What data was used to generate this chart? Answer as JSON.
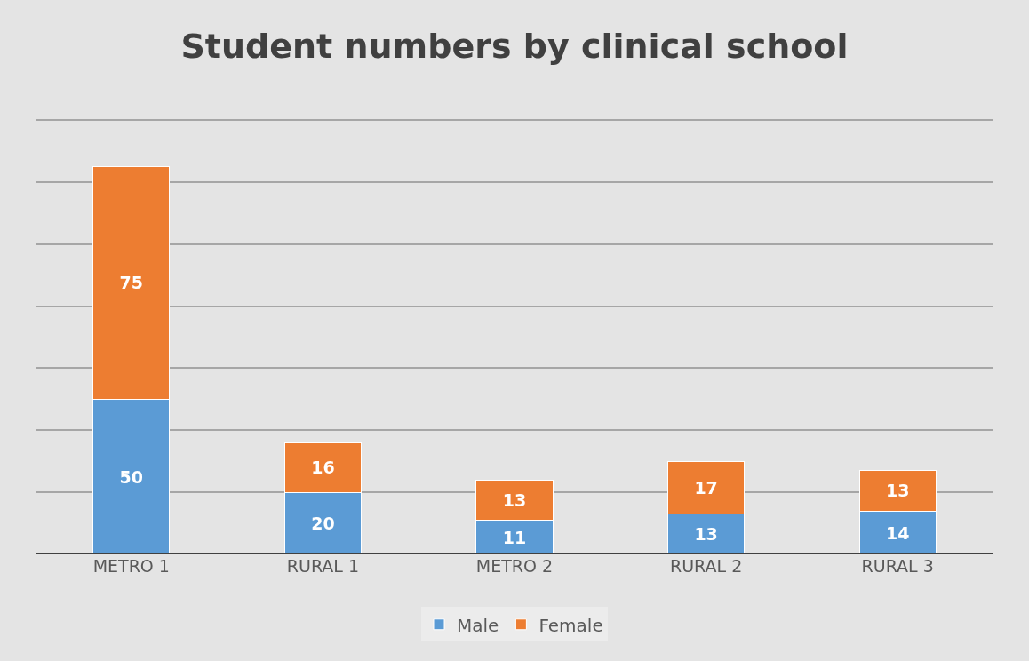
{
  "chart_data": {
    "type": "bar",
    "title": "Student numbers by clinical school",
    "stacked": true,
    "categories": [
      "METRO 1",
      "RURAL 1",
      "METRO 2",
      "RURAL 2",
      "RURAL 3"
    ],
    "series": [
      {
        "name": "Male",
        "color": "#5b9bd5",
        "values": [
          50,
          20,
          11,
          13,
          14
        ]
      },
      {
        "name": "Female",
        "color": "#ed7d31",
        "values": [
          75,
          16,
          13,
          17,
          13
        ]
      }
    ],
    "yticks": [
      {
        "value": 0,
        "label": null
      },
      {
        "value": 20,
        "label": null
      },
      {
        "value": 40,
        "label": null
      },
      {
        "value": 60,
        "label": null
      },
      {
        "value": 80,
        "label": null
      },
      {
        "value": 100,
        "label": null
      },
      {
        "value": 120,
        "label": null
      },
      {
        "value": 140,
        "label": null
      }
    ],
    "tick_labels": "x",
    "grid": "y",
    "data_labels": true,
    "legend": "bottom"
  }
}
